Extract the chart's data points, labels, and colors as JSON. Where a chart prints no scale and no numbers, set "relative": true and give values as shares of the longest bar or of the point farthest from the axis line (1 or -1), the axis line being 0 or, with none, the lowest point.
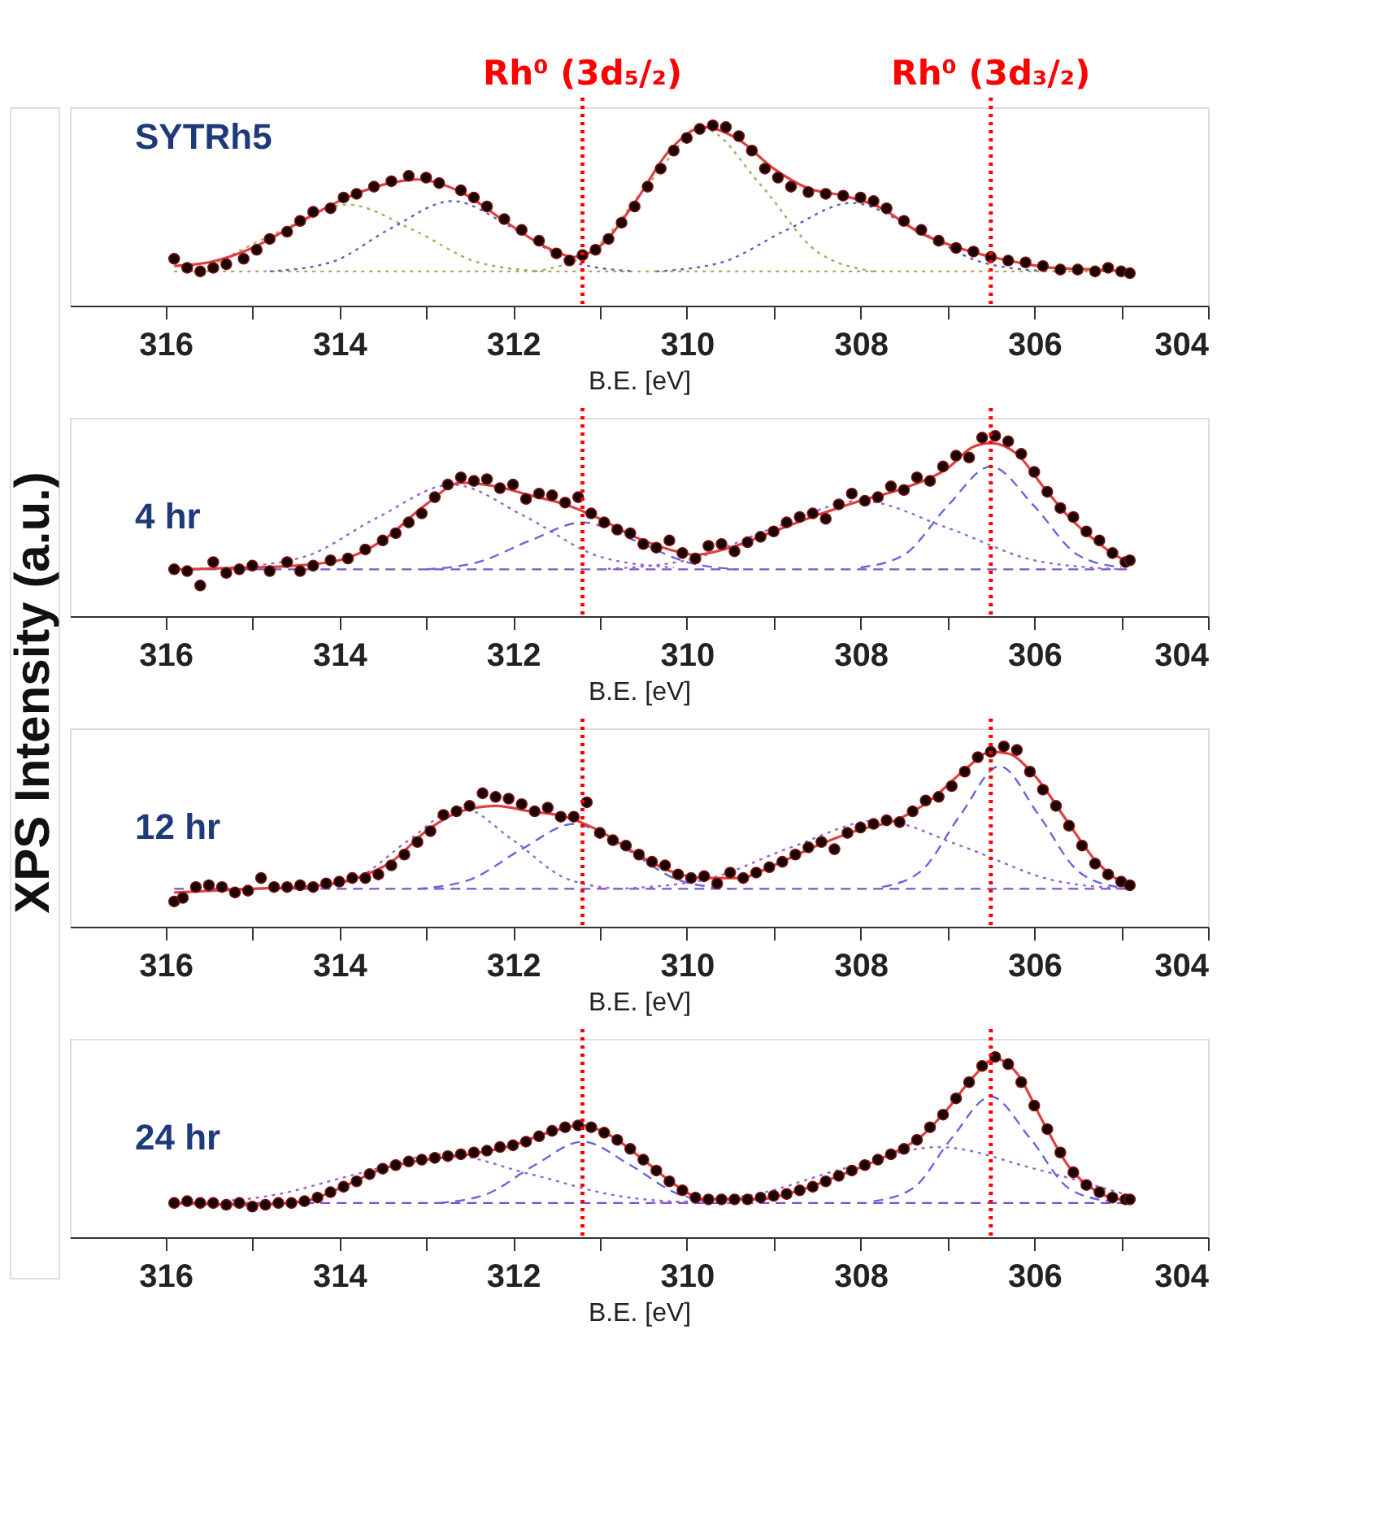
{
  "chart_data": [
    {
      "type": "line",
      "ylabel": "XPS Intensity (a.u.)",
      "xlabel": "B.E. [eV]",
      "annotations": [
        "SYTRh5"
      ],
      "relative": true,
      "xlim": [
        317.1,
        304
      ],
      "xticks": [
        316,
        {
          "value": 315,
          "label": null
        },
        314,
        {
          "value": 313,
          "label": null
        },
        312,
        {
          "value": 311,
          "label": null
        },
        310,
        {
          "value": 309,
          "label": null
        },
        308,
        {
          "value": 307,
          "label": null
        },
        306,
        {
          "value": 305,
          "label": null
        },
        304
      ],
      "ref_lines": [
        {
          "axis": "x",
          "value": 311.2,
          "label": "Rh⁰ (3d₅/₂)",
          "color": "#ff0000",
          "line_style": "dotted"
        },
        {
          "axis": "x",
          "value": 306.5,
          "label": "Rh⁰ (3d₃/₂)",
          "color": "#ff0000",
          "line_style": "dotted"
        }
      ],
      "series": [
        {
          "color": "#b0a860",
          "line_style": "dotted",
          "x": [
            315.9,
            304.9
          ],
          "values": [
            0.19,
            0.19
          ]
        },
        {
          "color": "#b0a860",
          "line_style": "dotted",
          "x": [
            315.4,
            314.65,
            313.9,
            313.15,
            312.4,
            311.65
          ],
          "values": [
            0.24,
            0.42,
            0.56,
            0.42,
            0.24,
            0.19
          ]
        },
        {
          "color": "#6060b0",
          "line_style": "dotted",
          "x": [
            314.8,
            314.1,
            313.4,
            312.7,
            312.0,
            311.3,
            310.6
          ],
          "values": [
            0.19,
            0.24,
            0.43,
            0.58,
            0.43,
            0.24,
            0.19
          ]
        },
        {
          "color": "#b0a860",
          "line_style": "dotted",
          "x": [
            311.75,
            311.1,
            310.45,
            309.8,
            309.15,
            308.5,
            307.85
          ],
          "values": [
            0.19,
            0.3,
            0.67,
            0.98,
            0.67,
            0.3,
            0.19
          ]
        },
        {
          "color": "#6060b0",
          "line_style": "dotted",
          "x": [
            310.35,
            309.6,
            308.85,
            308.1,
            307.35,
            306.6,
            305.85
          ],
          "values": [
            0.19,
            0.24,
            0.42,
            0.57,
            0.42,
            0.24,
            0.19
          ]
        },
        {
          "color": "#e04040",
          "line_style": "solid",
          "x": [
            315.9,
            315.5,
            315,
            314.5,
            314,
            313.5,
            313.1,
            312.6,
            312.1,
            311.6,
            311.3,
            311,
            310.6,
            310.2,
            309.8,
            309.4,
            309,
            308.6,
            308.2,
            307.8,
            307.3,
            306.8,
            306.3,
            305.8,
            305.3,
            304.9
          ],
          "values": [
            0.22,
            0.24,
            0.32,
            0.45,
            0.58,
            0.67,
            0.7,
            0.63,
            0.47,
            0.32,
            0.27,
            0.33,
            0.57,
            0.86,
            0.99,
            0.92,
            0.76,
            0.65,
            0.61,
            0.55,
            0.4,
            0.31,
            0.25,
            0.21,
            0.2,
            0.19
          ]
        },
        {
          "type": "scatter",
          "marker": "circle",
          "color": "#1a0505",
          "x": [
            315.9,
            315.75,
            315.6,
            315.45,
            315.3,
            315.1,
            314.95,
            314.8,
            314.6,
            314.45,
            314.3,
            314.1,
            313.95,
            313.8,
            313.6,
            313.4,
            313.2,
            313.0,
            312.85,
            312.6,
            312.45,
            312.3,
            312.1,
            311.9,
            311.7,
            311.5,
            311.35,
            311.2,
            311.05,
            310.9,
            310.75,
            310.6,
            310.45,
            310.3,
            310.15,
            310.0,
            309.85,
            309.7,
            309.55,
            309.4,
            309.25,
            309.1,
            308.95,
            308.8,
            308.6,
            308.4,
            308.2,
            308.0,
            307.85,
            307.7,
            307.5,
            307.3,
            307.1,
            306.9,
            306.7,
            306.5,
            306.3,
            306.1,
            305.9,
            305.7,
            305.5,
            305.3,
            305.15,
            305.0,
            304.9
          ],
          "values": [
            0.26,
            0.21,
            0.19,
            0.21,
            0.23,
            0.26,
            0.31,
            0.37,
            0.41,
            0.47,
            0.52,
            0.54,
            0.6,
            0.62,
            0.66,
            0.69,
            0.72,
            0.71,
            0.68,
            0.64,
            0.6,
            0.55,
            0.48,
            0.42,
            0.36,
            0.29,
            0.25,
            0.28,
            0.31,
            0.37,
            0.46,
            0.55,
            0.66,
            0.76,
            0.86,
            0.93,
            0.98,
            1.0,
            0.99,
            0.94,
            0.86,
            0.76,
            0.71,
            0.66,
            0.63,
            0.62,
            0.61,
            0.6,
            0.58,
            0.54,
            0.47,
            0.42,
            0.36,
            0.32,
            0.3,
            0.27,
            0.25,
            0.24,
            0.22,
            0.2,
            0.2,
            0.19,
            0.21,
            0.19,
            0.18
          ]
        }
      ]
    },
    {
      "type": "line",
      "xlabel": "B.E. [eV]",
      "annotations": [
        "4 hr"
      ],
      "relative": true,
      "xlim": [
        317.1,
        304
      ],
      "xticks": [
        316,
        {
          "value": 315,
          "label": null
        },
        314,
        {
          "value": 313,
          "label": null
        },
        312,
        {
          "value": 311,
          "label": null
        },
        310,
        {
          "value": 309,
          "label": null
        },
        308,
        {
          "value": 307,
          "label": null
        },
        306,
        {
          "value": 305,
          "label": null
        },
        304
      ],
      "ref_lines": [
        {
          "axis": "x",
          "value": 311.2,
          "color": "#ff0000",
          "line_style": "dotted"
        },
        {
          "axis": "x",
          "value": 306.5,
          "color": "#ff0000",
          "line_style": "dotted"
        }
      ],
      "series": [
        {
          "color": "#7755cc",
          "line_style": "dashed",
          "x": [
            315.9,
            304.9
          ],
          "values": [
            0.26,
            0.26
          ]
        },
        {
          "color": "#9966cc",
          "line_style": "dotted",
          "x": [
            315.25,
            314.4,
            313.55,
            312.7,
            311.85,
            311.0,
            310.15
          ],
          "values": [
            0.27,
            0.33,
            0.55,
            0.73,
            0.55,
            0.33,
            0.27
          ]
        },
        {
          "color": "#6666dd",
          "line_style": "dashed",
          "x": [
            313.0,
            312.4,
            311.8,
            311.2,
            310.6,
            310.0,
            309.4
          ],
          "values": [
            0.26,
            0.3,
            0.42,
            0.52,
            0.42,
            0.3,
            0.26
          ]
        },
        {
          "color": "#9966cc",
          "line_style": "dotted",
          "x": [
            311,
            310,
            309,
            308,
            307,
            306,
            305
          ],
          "values": [
            0.26,
            0.31,
            0.49,
            0.64,
            0.49,
            0.31,
            0.26
          ]
        },
        {
          "color": "#6666dd",
          "line_style": "dashed",
          "x": [
            308,
            307.5,
            307,
            306.5,
            306,
            305.5,
            305
          ],
          "values": [
            0.27,
            0.34,
            0.61,
            0.83,
            0.61,
            0.34,
            0.27
          ]
        },
        {
          "color": "#e04040",
          "line_style": "solid",
          "x": [
            315.9,
            315,
            314.5,
            314,
            313.5,
            313,
            312.6,
            312.2,
            311.8,
            311.4,
            311,
            310.6,
            310.2,
            309.9,
            309.5,
            309,
            308.5,
            308,
            307.5,
            307,
            306.7,
            306.5,
            306.2,
            305.9,
            305.6,
            305.3,
            305,
            304.9
          ],
          "values": [
            0.26,
            0.27,
            0.28,
            0.31,
            0.42,
            0.62,
            0.74,
            0.72,
            0.67,
            0.62,
            0.54,
            0.44,
            0.37,
            0.34,
            0.38,
            0.47,
            0.56,
            0.64,
            0.71,
            0.82,
            0.94,
            0.96,
            0.9,
            0.72,
            0.55,
            0.42,
            0.32,
            0.3
          ]
        },
        {
          "type": "scatter",
          "marker": "circle",
          "color": "#1a0505",
          "x": [
            315.9,
            315.75,
            315.6,
            315.45,
            315.3,
            315.15,
            315.0,
            314.8,
            314.6,
            314.45,
            314.3,
            314.1,
            313.9,
            313.7,
            313.5,
            313.35,
            313.2,
            313.05,
            312.9,
            312.75,
            312.6,
            312.45,
            312.3,
            312.15,
            312.0,
            311.85,
            311.7,
            311.55,
            311.4,
            311.25,
            311.1,
            310.95,
            310.8,
            310.65,
            310.5,
            310.35,
            310.2,
            310.05,
            309.9,
            309.75,
            309.6,
            309.45,
            309.3,
            309.15,
            309.0,
            308.85,
            308.7,
            308.55,
            308.4,
            308.25,
            308.1,
            307.95,
            307.8,
            307.65,
            307.5,
            307.35,
            307.2,
            307.05,
            306.9,
            306.75,
            306.6,
            306.45,
            306.3,
            306.15,
            306.0,
            305.85,
            305.7,
            305.55,
            305.4,
            305.25,
            305.1,
            304.95,
            304.9
          ],
          "values": [
            0.26,
            0.25,
            0.17,
            0.3,
            0.24,
            0.26,
            0.28,
            0.25,
            0.3,
            0.25,
            0.28,
            0.31,
            0.32,
            0.37,
            0.42,
            0.46,
            0.52,
            0.57,
            0.66,
            0.73,
            0.77,
            0.75,
            0.76,
            0.71,
            0.73,
            0.65,
            0.68,
            0.67,
            0.63,
            0.66,
            0.57,
            0.52,
            0.48,
            0.46,
            0.4,
            0.38,
            0.42,
            0.35,
            0.32,
            0.39,
            0.4,
            0.36,
            0.41,
            0.44,
            0.47,
            0.52,
            0.55,
            0.57,
            0.54,
            0.62,
            0.68,
            0.64,
            0.66,
            0.72,
            0.7,
            0.77,
            0.75,
            0.83,
            0.89,
            0.88,
            0.99,
            1.0,
            0.97,
            0.9,
            0.8,
            0.69,
            0.6,
            0.55,
            0.47,
            0.42,
            0.35,
            0.3,
            0.31
          ]
        }
      ]
    },
    {
      "type": "line",
      "xlabel": "B.E. [eV]",
      "annotations": [
        "12 hr"
      ],
      "relative": true,
      "xlim": [
        317.1,
        304
      ],
      "xticks": [
        316,
        {
          "value": 315,
          "label": null
        },
        314,
        {
          "value": 313,
          "label": null
        },
        312,
        {
          "value": 311,
          "label": null
        },
        310,
        {
          "value": 309,
          "label": null
        },
        308,
        {
          "value": 307,
          "label": null
        },
        306,
        {
          "value": 305,
          "label": null
        },
        304
      ],
      "ref_lines": [
        {
          "axis": "x",
          "value": 311.2,
          "color": "#ff0000",
          "line_style": "dotted"
        },
        {
          "axis": "x",
          "value": 306.5,
          "color": "#ff0000",
          "line_style": "dotted"
        }
      ],
      "series": [
        {
          "color": "#7755cc",
          "line_style": "dashed",
          "x": [
            315.9,
            304.9
          ],
          "values": [
            0.21,
            0.21
          ]
        },
        {
          "color": "#9966cc",
          "line_style": "dotted",
          "x": [
            314.4,
            313.8,
            313.2,
            312.6,
            312.0,
            311.4,
            310.8
          ],
          "values": [
            0.21,
            0.27,
            0.48,
            0.66,
            0.48,
            0.27,
            0.21
          ]
        },
        {
          "color": "#6666dd",
          "line_style": "dashed",
          "x": [
            313.1,
            312.5,
            311.9,
            311.3,
            310.7,
            310.1,
            309.5
          ],
          "values": [
            0.21,
            0.26,
            0.43,
            0.57,
            0.43,
            0.26,
            0.21
          ]
        },
        {
          "color": "#9966cc",
          "line_style": "dotted",
          "x": [
            310.8,
            309.8,
            308.8,
            307.8,
            306.8,
            305.8,
            304.9
          ],
          "values": [
            0.21,
            0.26,
            0.44,
            0.59,
            0.44,
            0.26,
            0.21
          ]
        },
        {
          "color": "#6666dd",
          "line_style": "dashed",
          "x": [
            307.75,
            307.3,
            306.85,
            306.4,
            305.95,
            305.5,
            305.05
          ],
          "values": [
            0.22,
            0.31,
            0.62,
            0.89,
            0.62,
            0.31,
            0.22
          ]
        },
        {
          "color": "#e04040",
          "line_style": "solid",
          "x": [
            315.9,
            315,
            314.2,
            313.8,
            313.4,
            313,
            312.6,
            312.2,
            311.8,
            311.4,
            311,
            310.6,
            310.2,
            309.8,
            309.4,
            309,
            308.5,
            308,
            307.6,
            307.2,
            306.8,
            306.5,
            306.3,
            306,
            305.6,
            305.3,
            305,
            304.9
          ],
          "values": [
            0.19,
            0.21,
            0.23,
            0.27,
            0.36,
            0.53,
            0.64,
            0.67,
            0.64,
            0.61,
            0.53,
            0.41,
            0.31,
            0.27,
            0.27,
            0.34,
            0.45,
            0.54,
            0.59,
            0.7,
            0.87,
            0.97,
            0.96,
            0.84,
            0.57,
            0.37,
            0.25,
            0.23
          ]
        },
        {
          "type": "scatter",
          "marker": "circle",
          "color": "#1a0505",
          "x": [
            315.9,
            315.8,
            315.65,
            315.5,
            315.35,
            315.2,
            315.05,
            314.9,
            314.75,
            314.6,
            314.45,
            314.3,
            314.15,
            314.0,
            313.85,
            313.7,
            313.55,
            313.4,
            313.25,
            313.1,
            312.95,
            312.8,
            312.65,
            312.5,
            312.35,
            312.2,
            312.05,
            311.9,
            311.75,
            311.6,
            311.45,
            311.3,
            311.15,
            311.0,
            310.85,
            310.7,
            310.55,
            310.4,
            310.25,
            310.1,
            309.95,
            309.8,
            309.65,
            309.5,
            309.35,
            309.2,
            309.05,
            308.9,
            308.75,
            308.6,
            308.45,
            308.3,
            308.15,
            308.0,
            307.85,
            307.7,
            307.55,
            307.4,
            307.25,
            307.1,
            306.95,
            306.8,
            306.65,
            306.5,
            306.35,
            306.2,
            306.05,
            305.9,
            305.75,
            305.6,
            305.45,
            305.3,
            305.15,
            305.0,
            304.9
          ],
          "values": [
            0.14,
            0.16,
            0.22,
            0.23,
            0.22,
            0.19,
            0.2,
            0.27,
            0.22,
            0.22,
            0.23,
            0.22,
            0.24,
            0.25,
            0.27,
            0.27,
            0.29,
            0.34,
            0.4,
            0.47,
            0.53,
            0.62,
            0.64,
            0.67,
            0.74,
            0.72,
            0.71,
            0.68,
            0.64,
            0.66,
            0.61,
            0.61,
            0.69,
            0.52,
            0.48,
            0.45,
            0.4,
            0.36,
            0.34,
            0.29,
            0.27,
            0.28,
            0.24,
            0.3,
            0.27,
            0.3,
            0.33,
            0.36,
            0.4,
            0.44,
            0.47,
            0.43,
            0.52,
            0.55,
            0.57,
            0.59,
            0.58,
            0.64,
            0.7,
            0.72,
            0.78,
            0.86,
            0.94,
            0.97,
            1.0,
            0.98,
            0.86,
            0.76,
            0.67,
            0.56,
            0.45,
            0.35,
            0.29,
            0.25,
            0.23
          ]
        }
      ]
    },
    {
      "type": "line",
      "xlabel": "B.E. [eV]",
      "annotations": [
        "24 hr"
      ],
      "relative": true,
      "xlim": [
        317.1,
        304
      ],
      "xticks": [
        316,
        {
          "value": 315,
          "label": null
        },
        314,
        {
          "value": 313,
          "label": null
        },
        312,
        {
          "value": 311,
          "label": null
        },
        310,
        {
          "value": 309,
          "label": null
        },
        308,
        {
          "value": 307,
          "label": null
        },
        306,
        {
          "value": 305,
          "label": null
        },
        304
      ],
      "ref_lines": [
        {
          "axis": "x",
          "value": 311.2,
          "color": "#ff0000",
          "line_style": "dotted"
        },
        {
          "axis": "x",
          "value": 306.5,
          "color": "#ff0000",
          "line_style": "dotted"
        }
      ],
      "series": [
        {
          "color": "#7755cc",
          "line_style": "dashed",
          "x": [
            315.9,
            304.9
          ],
          "values": [
            0.19,
            0.19
          ]
        },
        {
          "color": "#9966cc",
          "line_style": "dotted",
          "x": [
            315.8,
            314.8,
            313.8,
            312.8,
            311.8,
            310.8,
            309.8
          ],
          "values": [
            0.19,
            0.23,
            0.35,
            0.46,
            0.35,
            0.23,
            0.19
          ]
        },
        {
          "color": "#6666dd",
          "line_style": "dashed",
          "x": [
            312.85,
            312.3,
            311.75,
            311.2,
            310.65,
            310.1,
            309.55
          ],
          "values": [
            0.19,
            0.24,
            0.4,
            0.53,
            0.4,
            0.24,
            0.19
          ]
        },
        {
          "color": "#9966cc",
          "line_style": "dotted",
          "x": [
            310.4,
            309.3,
            308.2,
            307.1,
            306.0,
            304.9
          ],
          "values": [
            0.19,
            0.23,
            0.38,
            0.5,
            0.38,
            0.23
          ]
        },
        {
          "color": "#6666dd",
          "line_style": "dashed",
          "x": [
            307.85,
            307.4,
            306.95,
            306.5,
            306.05,
            305.6,
            305.15
          ],
          "values": [
            0.2,
            0.27,
            0.55,
            0.78,
            0.55,
            0.27,
            0.2
          ]
        },
        {
          "color": "#e04040",
          "line_style": "solid",
          "x": [
            315.9,
            315,
            314.4,
            314,
            313.5,
            313,
            312.5,
            312,
            311.6,
            311.2,
            310.9,
            310.5,
            310.1,
            309.8,
            309.2,
            308.7,
            308.2,
            307.7,
            307.3,
            307,
            306.7,
            306.45,
            306.2,
            305.9,
            305.6,
            305.3,
            305,
            304.9
          ],
          "values": [
            0.19,
            0.18,
            0.2,
            0.27,
            0.38,
            0.43,
            0.46,
            0.51,
            0.58,
            0.62,
            0.57,
            0.43,
            0.28,
            0.21,
            0.21,
            0.26,
            0.35,
            0.45,
            0.56,
            0.71,
            0.89,
            0.99,
            0.91,
            0.64,
            0.39,
            0.26,
            0.21,
            0.21
          ]
        },
        {
          "type": "scatter",
          "marker": "circle",
          "color": "#1a0505",
          "x": [
            315.9,
            315.75,
            315.6,
            315.45,
            315.3,
            315.15,
            315.0,
            314.85,
            314.7,
            314.55,
            314.4,
            314.25,
            314.1,
            313.95,
            313.8,
            313.65,
            313.5,
            313.35,
            313.2,
            313.05,
            312.9,
            312.75,
            312.6,
            312.45,
            312.3,
            312.15,
            312.0,
            311.85,
            311.7,
            311.55,
            311.4,
            311.25,
            311.1,
            310.95,
            310.8,
            310.65,
            310.5,
            310.35,
            310.2,
            310.05,
            309.9,
            309.75,
            309.6,
            309.45,
            309.3,
            309.15,
            309.0,
            308.85,
            308.7,
            308.55,
            308.4,
            308.25,
            308.1,
            307.95,
            307.8,
            307.65,
            307.5,
            307.35,
            307.2,
            307.05,
            306.9,
            306.75,
            306.6,
            306.45,
            306.3,
            306.15,
            306.0,
            305.85,
            305.7,
            305.55,
            305.4,
            305.25,
            305.1,
            304.95,
            304.9
          ],
          "values": [
            0.19,
            0.2,
            0.19,
            0.19,
            0.18,
            0.19,
            0.17,
            0.18,
            0.19,
            0.19,
            0.2,
            0.22,
            0.25,
            0.28,
            0.31,
            0.35,
            0.38,
            0.4,
            0.42,
            0.43,
            0.44,
            0.45,
            0.46,
            0.47,
            0.48,
            0.5,
            0.51,
            0.53,
            0.56,
            0.59,
            0.61,
            0.62,
            0.61,
            0.58,
            0.54,
            0.49,
            0.43,
            0.37,
            0.31,
            0.26,
            0.22,
            0.21,
            0.21,
            0.21,
            0.21,
            0.22,
            0.23,
            0.24,
            0.26,
            0.28,
            0.31,
            0.34,
            0.37,
            0.4,
            0.43,
            0.46,
            0.49,
            0.54,
            0.61,
            0.68,
            0.77,
            0.86,
            0.95,
            1.0,
            0.96,
            0.86,
            0.73,
            0.6,
            0.47,
            0.36,
            0.29,
            0.25,
            0.22,
            0.21,
            0.21
          ]
        }
      ]
    }
  ]
}
